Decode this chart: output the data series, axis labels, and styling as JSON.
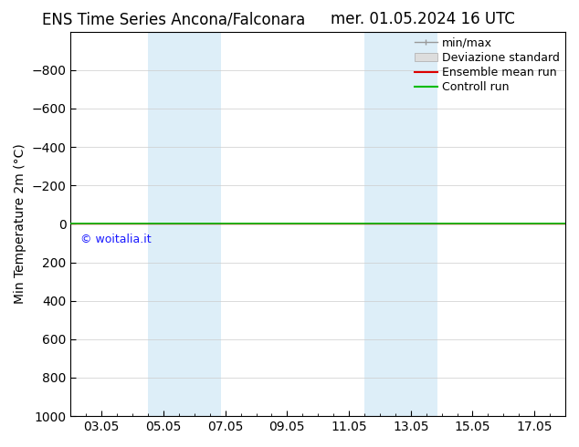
{
  "title_left": "ENS Time Series Ancona/Falconara",
  "title_right": "mer. 01.05.2024 16 UTC",
  "ylabel": "Min Temperature 2m (°C)",
  "xtick_labels": [
    "03.05",
    "05.05",
    "07.05",
    "09.05",
    "11.05",
    "13.05",
    "15.05",
    "17.05"
  ],
  "xtick_values": [
    2,
    4,
    6,
    8,
    10,
    12,
    14,
    16
  ],
  "xlim": [
    1,
    17
  ],
  "ylim": [
    -1000,
    1000
  ],
  "ytick_values": [
    -800,
    -600,
    -400,
    -200,
    0,
    200,
    400,
    600,
    800,
    1000
  ],
  "background_color": "#ffffff",
  "plot_bg_color": "#ffffff",
  "shaded_bands": [
    {
      "x_start": 3.5,
      "x_end": 5.85,
      "color": "#ddeef8"
    },
    {
      "x_start": 10.5,
      "x_end": 12.85,
      "color": "#ddeef8"
    }
  ],
  "control_run_y": 0.0,
  "ensemble_mean_y": 0.0,
  "watermark_text": "© woitalia.it",
  "watermark_color": "#1a1aff",
  "legend_entries": [
    "min/max",
    "Deviazione standard",
    "Ensemble mean run",
    "Controll run"
  ],
  "line_color_green": "#00bb00",
  "line_color_red": "#dd0000",
  "title_fontsize": 12,
  "axis_fontsize": 10,
  "legend_fontsize": 9
}
